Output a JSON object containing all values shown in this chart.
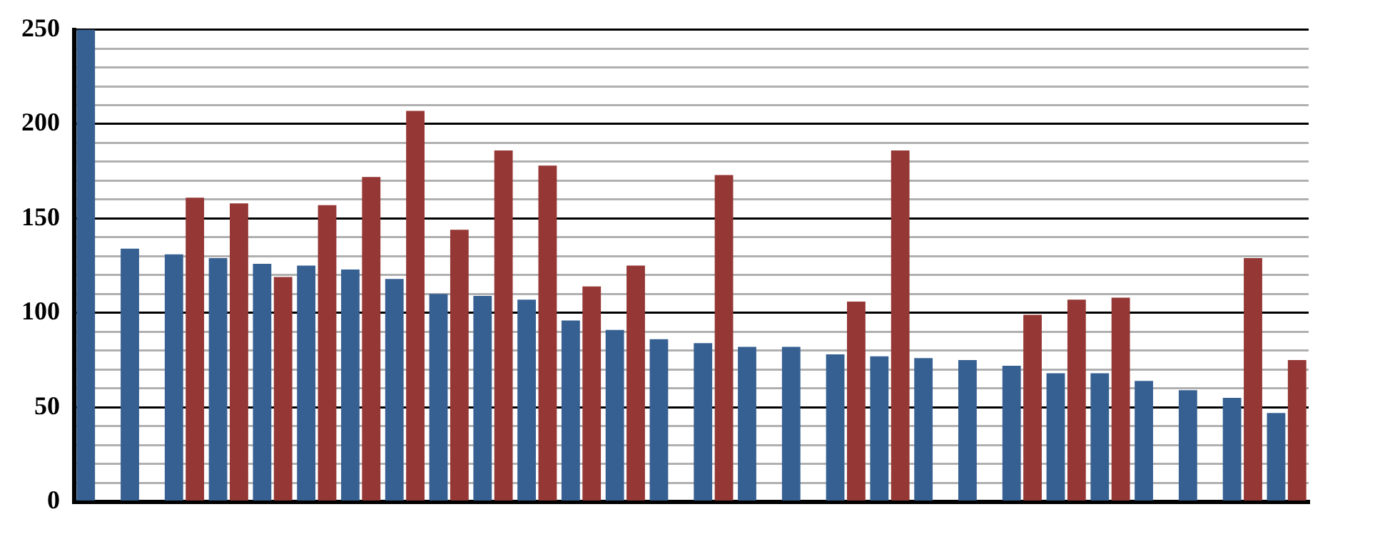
{
  "chart_data": {
    "type": "bar",
    "categories": [
      null,
      null,
      null,
      null,
      null,
      null,
      null,
      null,
      null,
      null,
      null,
      null,
      null,
      null,
      null,
      null,
      null,
      null,
      null,
      null,
      null,
      null,
      null,
      null,
      null,
      null,
      null,
      null
    ],
    "series": [
      {
        "color": "#376092",
        "values": [
          250,
          134,
          131,
          129,
          126,
          125,
          123,
          118,
          110,
          109,
          107,
          96,
          91,
          86,
          84,
          82,
          82,
          78,
          77,
          76,
          75,
          72,
          68,
          68,
          64,
          59,
          55,
          47
        ]
      },
      {
        "color": "#953735",
        "values": [
          null,
          null,
          161,
          158,
          119,
          157,
          172,
          207,
          144,
          186,
          178,
          114,
          125,
          null,
          173,
          null,
          null,
          106,
          186,
          null,
          null,
          99,
          107,
          108,
          null,
          null,
          129,
          75
        ]
      }
    ],
    "ylim": [
      0,
      250
    ],
    "yticks": [
      0,
      {
        "value": 10,
        "label": null
      },
      {
        "value": 20,
        "label": null
      },
      {
        "value": 30,
        "label": null
      },
      {
        "value": 40,
        "label": null
      },
      50,
      {
        "value": 60,
        "label": null
      },
      {
        "value": 70,
        "label": null
      },
      {
        "value": 80,
        "label": null
      },
      {
        "value": 90,
        "label": null
      },
      100,
      {
        "value": 110,
        "label": null
      },
      {
        "value": 120,
        "label": null
      },
      {
        "value": 130,
        "label": null
      },
      {
        "value": 140,
        "label": null
      },
      150,
      {
        "value": 160,
        "label": null
      },
      {
        "value": 170,
        "label": null
      },
      {
        "value": 180,
        "label": null
      },
      {
        "value": 190,
        "label": null
      },
      200,
      {
        "value": 210,
        "label": null
      },
      {
        "value": 220,
        "label": null
      },
      {
        "value": 230,
        "label": null
      },
      {
        "value": 240,
        "label": null
      },
      250
    ],
    "grid": "y",
    "legend": false
  }
}
